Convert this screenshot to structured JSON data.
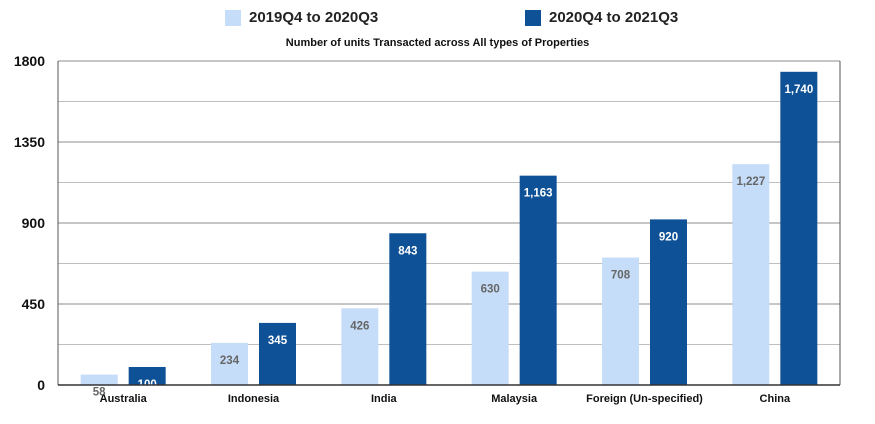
{
  "chart_data": {
    "type": "bar",
    "title": "Number of units Transacted across All types of Properties",
    "categories": [
      "Australia",
      "Indonesia",
      "India",
      "Malaysia",
      "Foreign (Un-specified)",
      "China"
    ],
    "series": [
      {
        "name": "2019Q4 to 2020Q3",
        "color": "#c5ddf8",
        "label_color": "#666666",
        "values": [
          58,
          234,
          426,
          630,
          708,
          1227
        ],
        "labels": [
          "58",
          "234",
          "426",
          "630",
          "708",
          "1,227"
        ]
      },
      {
        "name": "2020Q4 to 2021Q3",
        "color": "#0f5196",
        "label_color": "#ffffff",
        "values": [
          100,
          345,
          843,
          1163,
          920,
          1740
        ],
        "labels": [
          "100",
          "345",
          "843",
          "1,163",
          "920",
          "1,740"
        ]
      }
    ],
    "ylim": [
      0,
      1800
    ],
    "yticks": [
      "0",
      "450",
      "900",
      "1350",
      "1800"
    ],
    "ytick_values": [
      0,
      450,
      900,
      1350,
      1800
    ],
    "grid": true,
    "legend_position": "top"
  }
}
